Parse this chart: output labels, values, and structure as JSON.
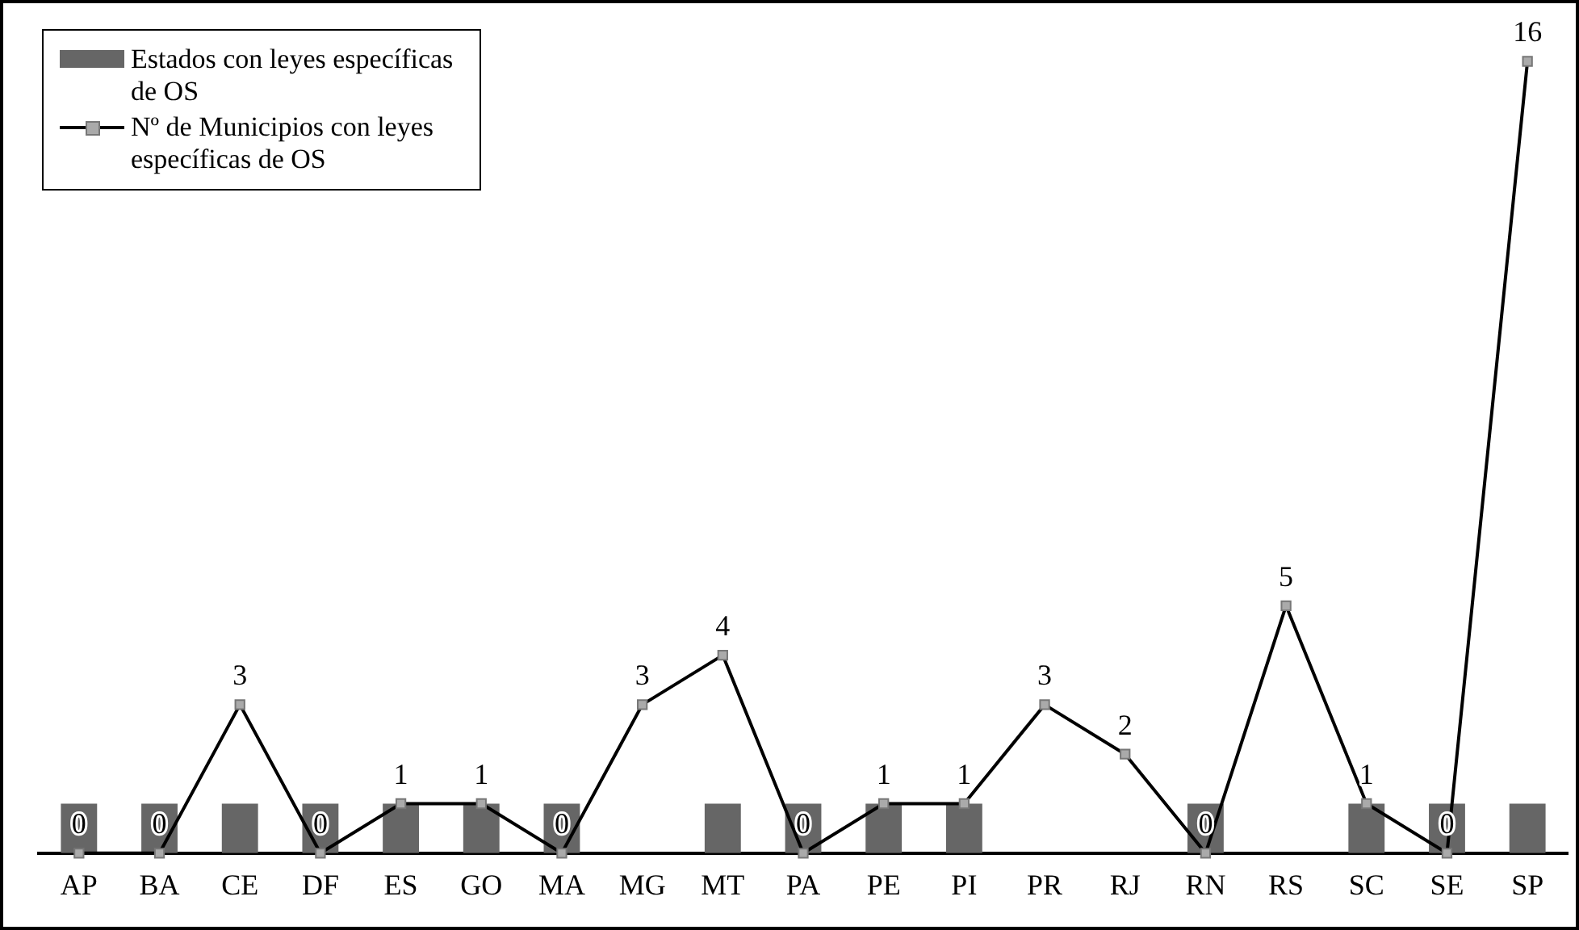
{
  "chart_data": {
    "type": "bar",
    "categories": [
      "AP",
      "BA",
      "CE",
      "DF",
      "ES",
      "GO",
      "MA",
      "MG",
      "MT",
      "PA",
      "PE",
      "PI",
      "PR",
      "RJ",
      "RN",
      "RS",
      "SC",
      "SE",
      "SP"
    ],
    "series": [
      {
        "name": "Estados con leyes específicas de OS",
        "color": "#666666",
        "values": [
          1,
          1,
          1,
          1,
          1,
          1,
          1,
          0,
          1,
          1,
          1,
          1,
          0,
          0,
          1,
          0,
          1,
          1,
          1
        ]
      },
      {
        "name": "Nº de Municipios con leyes específicas de OS",
        "type": "line",
        "color": "#000000",
        "marker": "square",
        "values": [
          0,
          0,
          3,
          0,
          1,
          1,
          0,
          3,
          4,
          0,
          1,
          1,
          3,
          2,
          0,
          5,
          1,
          0,
          16
        ],
        "value_labels": [
          "0",
          "0",
          "3",
          "0",
          "1",
          "1",
          "0",
          "3",
          "4",
          "0",
          "1",
          "1",
          "3",
          "2",
          "0",
          "5",
          "1",
          "0",
          "16"
        ]
      }
    ],
    "tick_labels": "x",
    "grid": false,
    "legend": "top left"
  }
}
